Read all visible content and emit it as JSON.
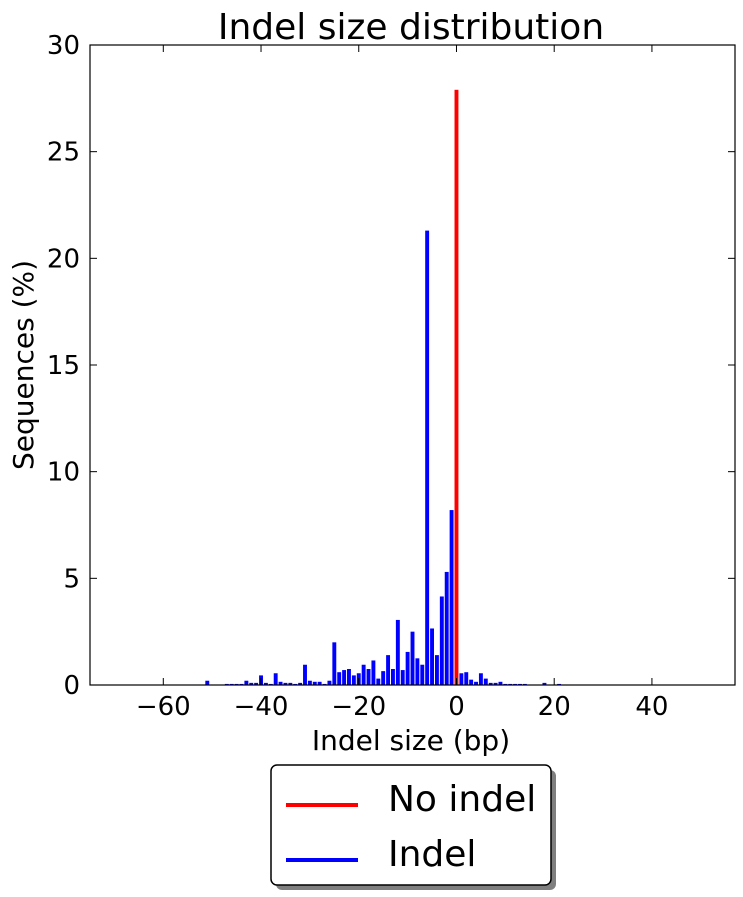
{
  "chart_data": {
    "type": "bar",
    "title": "Indel size distribution",
    "xlabel": "Indel size (bp)",
    "ylabel": "Sequences (%)",
    "xlim": [
      -75,
      57
    ],
    "ylim": [
      0,
      30
    ],
    "x_ticks": [
      -60,
      -40,
      -20,
      0,
      20,
      40
    ],
    "x_tick_labels": [
      "−60",
      "−40",
      "−20",
      "0",
      "20",
      "40"
    ],
    "y_ticks": [
      0,
      5,
      10,
      15,
      20,
      25,
      30
    ],
    "y_tick_labels": [
      "0",
      "5",
      "10",
      "15",
      "20",
      "25",
      "30"
    ],
    "grid": false,
    "legend": {
      "placement": "below",
      "entries": [
        {
          "label": "No indel",
          "color": "#ff0000"
        },
        {
          "label": "Indel",
          "color": "#0000ff"
        }
      ]
    },
    "series": [
      {
        "name": "No indel",
        "color": "#ff0000",
        "x": [
          0
        ],
        "values": [
          27.9
        ]
      },
      {
        "name": "Indel",
        "color": "#0000ff",
        "x": [
          -51,
          -47,
          -46,
          -45,
          -44,
          -43,
          -42,
          -41,
          -40,
          -39,
          -38,
          -37,
          -36,
          -35,
          -34,
          -33,
          -32,
          -31,
          -30,
          -29,
          -28,
          -27,
          -26,
          -25,
          -24,
          -23,
          -22,
          -21,
          -20,
          -19,
          -18,
          -17,
          -16,
          -15,
          -14,
          -13,
          -12,
          -11,
          -10,
          -9,
          -8,
          -7,
          -6,
          -5,
          -4,
          -3,
          -2,
          -1,
          1,
          2,
          3,
          4,
          5,
          6,
          7,
          8,
          9,
          10,
          11,
          12,
          13,
          14,
          18,
          21
        ],
        "values": [
          0.2,
          0.05,
          0.05,
          0.05,
          0.05,
          0.2,
          0.1,
          0.1,
          0.45,
          0.1,
          0.05,
          0.55,
          0.15,
          0.1,
          0.1,
          0.05,
          0.1,
          0.95,
          0.2,
          0.15,
          0.15,
          0.05,
          0.2,
          2.0,
          0.6,
          0.7,
          0.75,
          0.45,
          0.55,
          0.95,
          0.75,
          1.15,
          0.3,
          0.65,
          1.4,
          0.75,
          3.05,
          0.7,
          1.55,
          2.5,
          1.25,
          0.95,
          21.3,
          2.65,
          1.4,
          4.15,
          5.3,
          8.2,
          0.55,
          0.6,
          0.25,
          0.15,
          0.55,
          0.3,
          0.1,
          0.1,
          0.15,
          0.05,
          0.05,
          0.05,
          0.05,
          0.05,
          0.1,
          0.05
        ]
      }
    ]
  }
}
